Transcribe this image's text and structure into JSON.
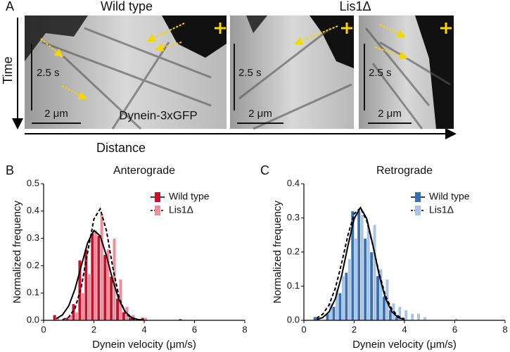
{
  "panel_a": {
    "letter": "A",
    "groups": [
      "Wild type",
      "Lis1Δ"
    ],
    "time_label": "Time",
    "distance_label": "Distance",
    "marker_label": "Dynein-3xGFP",
    "kymographs": [
      {
        "time_scale": "2.5 s",
        "distance_scale": "2 μm"
      },
      {
        "time_scale": "2.5 s",
        "distance_scale": "2 μm"
      },
      {
        "time_scale": "2.5 s",
        "distance_scale": "2 μm"
      }
    ]
  },
  "chart_data": [
    {
      "type": "histogram",
      "letter": "B",
      "title": "Anterograde",
      "x_label": "Dynein velocity (μm/s)",
      "y_label": "Normalized frequency",
      "xlim": [
        0,
        8
      ],
      "xticks": [
        0,
        2,
        4,
        6,
        8
      ],
      "ylim": [
        0,
        0.5
      ],
      "yticks": [
        {
          "value": 0,
          "label": "0.0"
        },
        0.1,
        0.2,
        0.3,
        0.4,
        0.5
      ],
      "series": [
        {
          "name": "Wild type",
          "color": "#c8102e",
          "dash": false,
          "x": [
            0.5,
            1.0,
            1.25,
            1.5,
            1.75,
            2.0,
            2.25,
            2.5,
            2.75,
            3.0,
            3.25,
            3.5,
            4.0,
            5.5
          ],
          "values": [
            0.02,
            0.01,
            0.06,
            0.22,
            0.26,
            0.32,
            0.31,
            0.24,
            0.16,
            0.08,
            0.03,
            0.01,
            0.01,
            0.005
          ],
          "fit": {
            "x": [
              0.5,
              0.75,
              1.0,
              1.25,
              1.5,
              1.75,
              2.0,
              2.25,
              2.5,
              2.75,
              3.0,
              3.25,
              3.5,
              3.75,
              4.0
            ],
            "values": [
              0.006,
              0.02,
              0.053,
              0.115,
              0.2,
              0.284,
              0.329,
              0.309,
              0.236,
              0.147,
              0.074,
              0.031,
              0.01,
              0.003,
              0.001
            ]
          }
        },
        {
          "name": "Lis1Δ",
          "color": "#ec8f9a",
          "dash": true,
          "x": [
            0.5,
            1.0,
            1.25,
            1.5,
            1.75,
            2.0,
            2.25,
            2.5,
            2.75,
            3.0,
            3.25,
            3.5,
            4.0
          ],
          "values": [
            0.01,
            0.02,
            0.03,
            0.1,
            0.17,
            0.33,
            0.39,
            0.26,
            0.3,
            0.15,
            0.05,
            0.02,
            0.01
          ],
          "fit": {
            "x": [
              0.75,
              1.0,
              1.25,
              1.5,
              1.75,
              2.0,
              2.25,
              2.5,
              2.75,
              3.0,
              3.25,
              3.5,
              3.75
            ],
            "values": [
              0.002,
              0.012,
              0.044,
              0.122,
              0.249,
              0.371,
              0.408,
              0.328,
              0.194,
              0.084,
              0.027,
              0.006,
              0.001
            ]
          }
        }
      ]
    },
    {
      "type": "histogram",
      "letter": "C",
      "title": "Retrograde",
      "x_label": "Dynein velocity (μm/s)",
      "y_label": "Normalized frequency",
      "xlim": [
        0,
        8
      ],
      "xticks": [
        0,
        2,
        4,
        6,
        8
      ],
      "ylim": [
        0,
        0.4
      ],
      "yticks": [
        {
          "value": 0,
          "label": "0.0"
        },
        0.1,
        0.2,
        0.3,
        0.4
      ],
      "series": [
        {
          "name": "Wild type",
          "color": "#3a6fb5",
          "dash": false,
          "x": [
            0.5,
            1.0,
            1.25,
            1.5,
            1.75,
            2.0,
            2.25,
            2.5,
            2.75,
            3.0,
            3.25,
            3.5,
            3.75
          ],
          "values": [
            0.01,
            0.02,
            0.04,
            0.08,
            0.14,
            0.32,
            0.32,
            0.24,
            0.2,
            0.13,
            0.07,
            0.03,
            0.01
          ],
          "fit": {
            "x": [
              0.5,
              0.75,
              1.0,
              1.25,
              1.5,
              1.75,
              2.0,
              2.25,
              2.5,
              2.75,
              3.0,
              3.25,
              3.5,
              3.75,
              4.0
            ],
            "values": [
              0.002,
              0.008,
              0.025,
              0.063,
              0.13,
              0.218,
              0.298,
              0.33,
              0.298,
              0.218,
              0.13,
              0.063,
              0.025,
              0.008,
              0.002
            ]
          }
        },
        {
          "name": "Lis1Δ",
          "color": "#a9c4e4",
          "dash": true,
          "x": [
            0.5,
            1.0,
            1.25,
            1.5,
            1.75,
            2.0,
            2.25,
            2.5,
            2.75,
            3.0,
            3.25,
            3.5,
            3.75,
            4.0,
            4.25,
            4.5,
            4.75,
            6.0
          ],
          "values": [
            0.01,
            0.05,
            0.09,
            0.13,
            0.18,
            0.24,
            0.31,
            0.27,
            0.28,
            0.15,
            0.12,
            0.05,
            0.04,
            0.03,
            0.02,
            0.02,
            0.01,
            0.005
          ],
          "fit": {
            "x": [
              0.5,
              0.75,
              1.0,
              1.25,
              1.5,
              1.75,
              2.0,
              2.25,
              2.5,
              2.75,
              3.0,
              3.25,
              3.5,
              3.75,
              4.0
            ],
            "values": [
              0.006,
              0.018,
              0.045,
              0.094,
              0.167,
              0.249,
              0.312,
              0.329,
              0.291,
              0.217,
              0.136,
              0.071,
              0.032,
              0.012,
              0.004
            ]
          }
        }
      ]
    }
  ]
}
